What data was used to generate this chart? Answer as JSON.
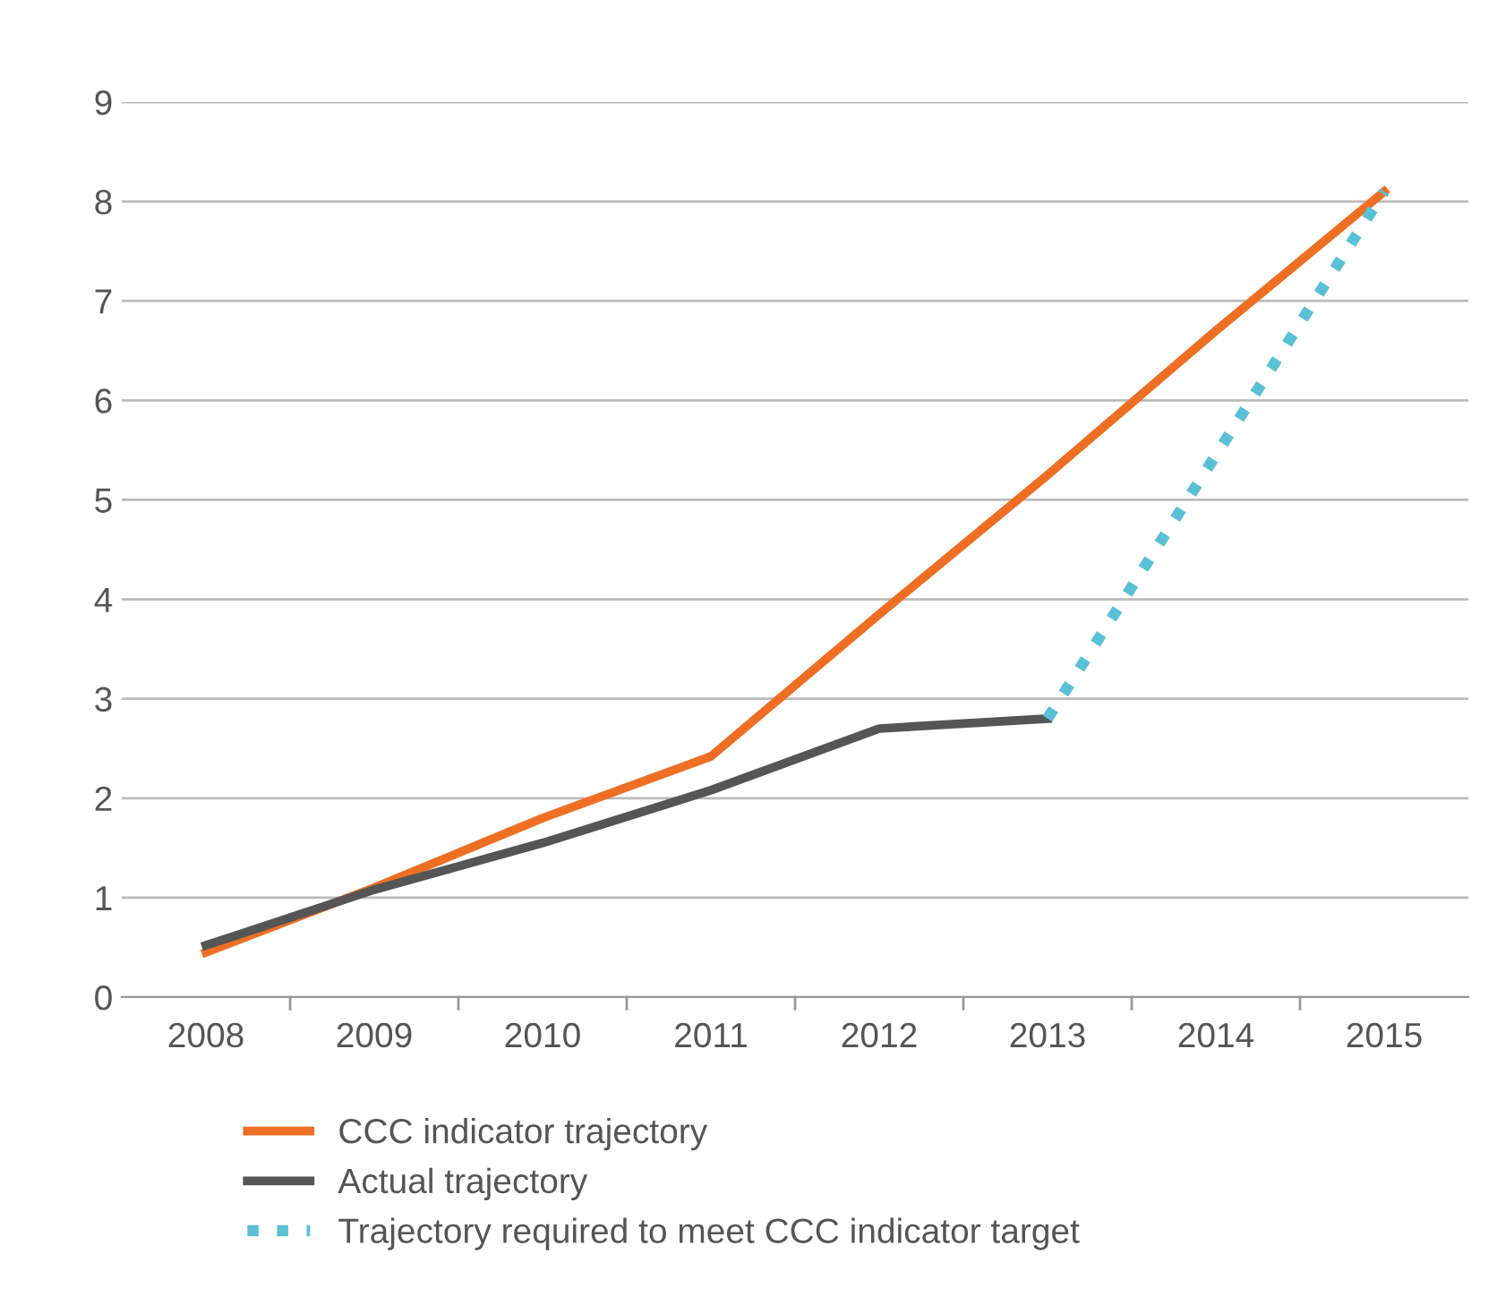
{
  "chart_data": {
    "type": "line",
    "categories": [
      "2008",
      "2009",
      "2010",
      "2011",
      "2012",
      "2013",
      "2014",
      "2015"
    ],
    "series": [
      {
        "name": "CCC indicator trajectory",
        "color": "#ee6f24",
        "values": [
          0.45,
          1.1,
          1.8,
          2.42,
          3.85,
          5.25,
          6.7,
          8.1
        ]
      },
      {
        "name": "Actual trajectory",
        "color": "#555555",
        "values": [
          0.52,
          1.08,
          1.55,
          2.08,
          2.7,
          2.8,
          null,
          null
        ]
      },
      {
        "name": "Trajectory required to meet CCC indicator target",
        "color": "#5bc0d6",
        "line_style": "dotted",
        "values": [
          null,
          null,
          null,
          null,
          null,
          2.8,
          5.45,
          8.1
        ]
      }
    ],
    "ylim": [
      0,
      9
    ],
    "yticks": [
      0,
      1,
      2,
      3,
      4,
      5,
      6,
      7,
      8,
      9
    ],
    "grid": "y",
    "legend": "bottom",
    "marker": "none",
    "line_style": "solid"
  }
}
